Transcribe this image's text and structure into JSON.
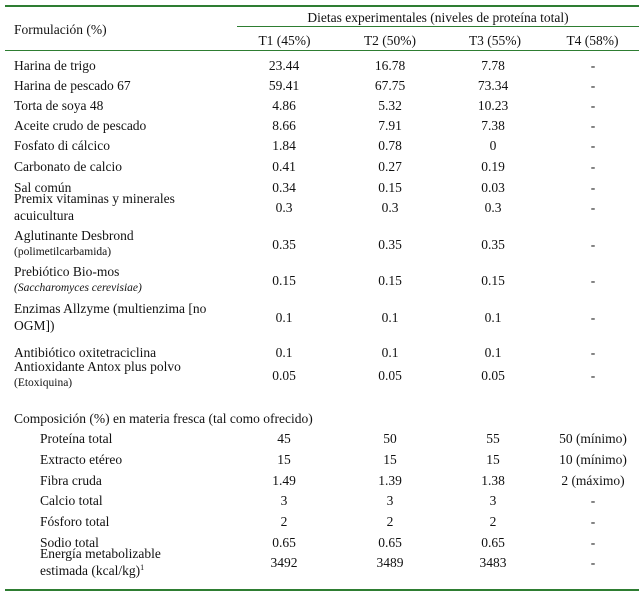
{
  "header": {
    "formulation_label": "Formulación (%)",
    "group_label": "Dietas experimentales (niveles de proteína total)",
    "columns": [
      "T1 (45%)",
      "T2 (50%)",
      "T3 (55%)",
      "T4 (58%)"
    ]
  },
  "formulation_rows": [
    {
      "label": "Harina de trigo",
      "values": [
        "23.44",
        "16.78",
        "7.78",
        "-"
      ]
    },
    {
      "label": "Harina de pescado 67",
      "values": [
        "59.41",
        "67.75",
        "73.34",
        "-"
      ]
    },
    {
      "label": "Torta de soya 48",
      "values": [
        "4.86",
        "5.32",
        "10.23",
        "-"
      ]
    },
    {
      "label": "Aceite crudo de pescado",
      "values": [
        "8.66",
        "7.91",
        "7.38",
        "-"
      ]
    },
    {
      "label": "Fosfato di cálcico",
      "values": [
        "1.84",
        "0.78",
        "0",
        "-"
      ]
    },
    {
      "label": "Carbonato de calcio",
      "values": [
        "0.41",
        "0.27",
        "0.19",
        "-"
      ]
    },
    {
      "label": "Sal común",
      "values": [
        "0.34",
        "0.15",
        "0.03",
        "-"
      ]
    },
    {
      "label": "Premix vitaminas y minerales",
      "label2": "acuicultura",
      "values": [
        "0.3",
        "0.3",
        "0.3",
        "-"
      ]
    },
    {
      "label": "Aglutinante Desbrond",
      "label2": "(polimetilcarbamida)",
      "values": [
        "0.35",
        "0.35",
        "0.35",
        "-"
      ]
    },
    {
      "label": "Prebiótico Bio-mos",
      "label2": "(Saccharomyces cerevisiae)",
      "values": [
        "0.15",
        "0.15",
        "0.15",
        "-"
      ]
    },
    {
      "label": "Enzimas Allzyme (multienzima [no",
      "label2": "OGM])",
      "values": [
        "0.1",
        "0.1",
        "0.1",
        "-"
      ]
    },
    {
      "label": "Antibiótico oxitetraciclina",
      "values": [
        "0.1",
        "0.1",
        "0.1",
        "-"
      ]
    },
    {
      "label": "Antioxidante Antox plus polvo",
      "label2": "(Etoxiquina)",
      "values": [
        "0.05",
        "0.05",
        "0.05",
        "-"
      ]
    }
  ],
  "composition": {
    "heading": "Composición (%) en materia fresca (tal como ofrecido)",
    "rows": [
      {
        "label": "Proteína total",
        "values": [
          "45",
          "50",
          "55",
          "50 (mínimo)"
        ]
      },
      {
        "label": "Extracto etéreo",
        "values": [
          "15",
          "15",
          "15",
          "10 (mínimo)"
        ]
      },
      {
        "label": "Fibra cruda",
        "values": [
          "1.49",
          "1.39",
          "1.38",
          "2 (máximo)"
        ]
      },
      {
        "label": "Calcio total",
        "values": [
          "3",
          "3",
          "3",
          "-"
        ]
      },
      {
        "label": "Fósforo total",
        "values": [
          "2",
          "2",
          "2",
          "-"
        ]
      },
      {
        "label": "Sodio total",
        "values": [
          "0.65",
          "0.65",
          "0.65",
          "-"
        ]
      },
      {
        "label": "Energía metabolizable",
        "label2": "estimada (kcal/kg)",
        "sup": "1",
        "values": [
          "3492",
          "3489",
          "3483",
          "-"
        ]
      }
    ]
  }
}
